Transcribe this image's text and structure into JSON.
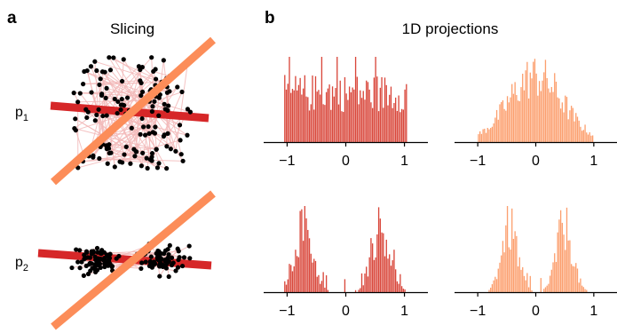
{
  "panels": {
    "a": {
      "letter": "a",
      "title": "Slicing"
    },
    "b": {
      "letter": "b",
      "title": "1D projections"
    }
  },
  "row_labels": [
    {
      "base": "p",
      "sub": "1"
    },
    {
      "base": "p",
      "sub": "2"
    }
  ],
  "colors": {
    "dark_red": "#d62728",
    "light_orange": "#fc8d59",
    "link": "#f2b8b8",
    "hist_dark": "#d9473b",
    "hist_light": "#fc9f6e"
  },
  "chart_data": [
    {
      "type": "scatter",
      "panel": "a",
      "row": "p1",
      "description_points": "uniform cloud with two projection lines",
      "x_range": [
        -1,
        1
      ],
      "y_range": [
        -1,
        1
      ],
      "lines": [
        {
          "color": "dark_red",
          "slope": -0.1
        },
        {
          "color": "light_orange",
          "slope": 1.0
        }
      ]
    },
    {
      "type": "scatter",
      "panel": "a",
      "row": "p2",
      "x_range": [
        -1,
        1
      ],
      "y_range": [
        -1,
        1
      ],
      "lines": [
        {
          "color": "dark_red",
          "slope": -0.1
        },
        {
          "color": "light_orange",
          "slope": 1.0
        }
      ]
    },
    {
      "type": "bar",
      "panel": "b",
      "row": "p1",
      "series_color": "hist_dark",
      "xlim": [
        -1.4,
        1.4
      ],
      "xticks": [
        -1,
        0,
        1
      ],
      "xtick_labels": [
        "−1",
        "0",
        "1"
      ]
    },
    {
      "type": "bar",
      "panel": "b",
      "row": "p1",
      "series_color": "hist_light",
      "xlim": [
        -1.4,
        1.4
      ],
      "xticks": [
        -1,
        0,
        1
      ],
      "xtick_labels": [
        "−1",
        "0",
        "1"
      ]
    },
    {
      "type": "bar",
      "panel": "b",
      "row": "p2",
      "series_color": "hist_dark",
      "xlim": [
        -1.4,
        1.4
      ],
      "xticks": [
        -1,
        0,
        1
      ],
      "xtick_labels": [
        "−1",
        "0",
        "1"
      ]
    },
    {
      "type": "bar",
      "panel": "b",
      "row": "p2",
      "series_color": "hist_light",
      "xlim": [
        -1.4,
        1.4
      ],
      "xticks": [
        -1,
        0,
        1
      ],
      "xtick_labels": [
        "−1",
        "0",
        "1"
      ]
    }
  ]
}
